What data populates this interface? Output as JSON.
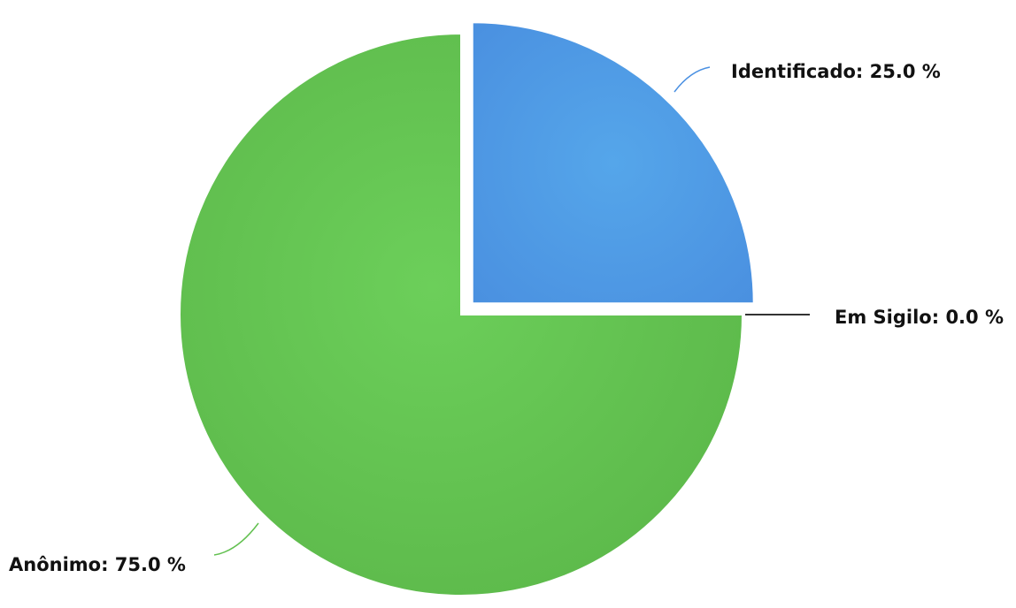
{
  "chart_data": {
    "type": "pie",
    "title": "",
    "slices": [
      {
        "label": "Identificado",
        "value": 25.0,
        "display": "Identificado: 25.0 %",
        "color": "#4a90e2",
        "exploded": true
      },
      {
        "label": "Em Sigilo",
        "value": 0.0,
        "display": "Em Sigilo: 0.0 %",
        "color": "#333333",
        "exploded": false
      },
      {
        "label": "Anônimo",
        "value": 75.0,
        "display": "Anônimo: 75.0 %",
        "color": "#62c050",
        "exploded": false
      }
    ],
    "legend": "none",
    "data_labels": "outside-with-leader-lines"
  }
}
